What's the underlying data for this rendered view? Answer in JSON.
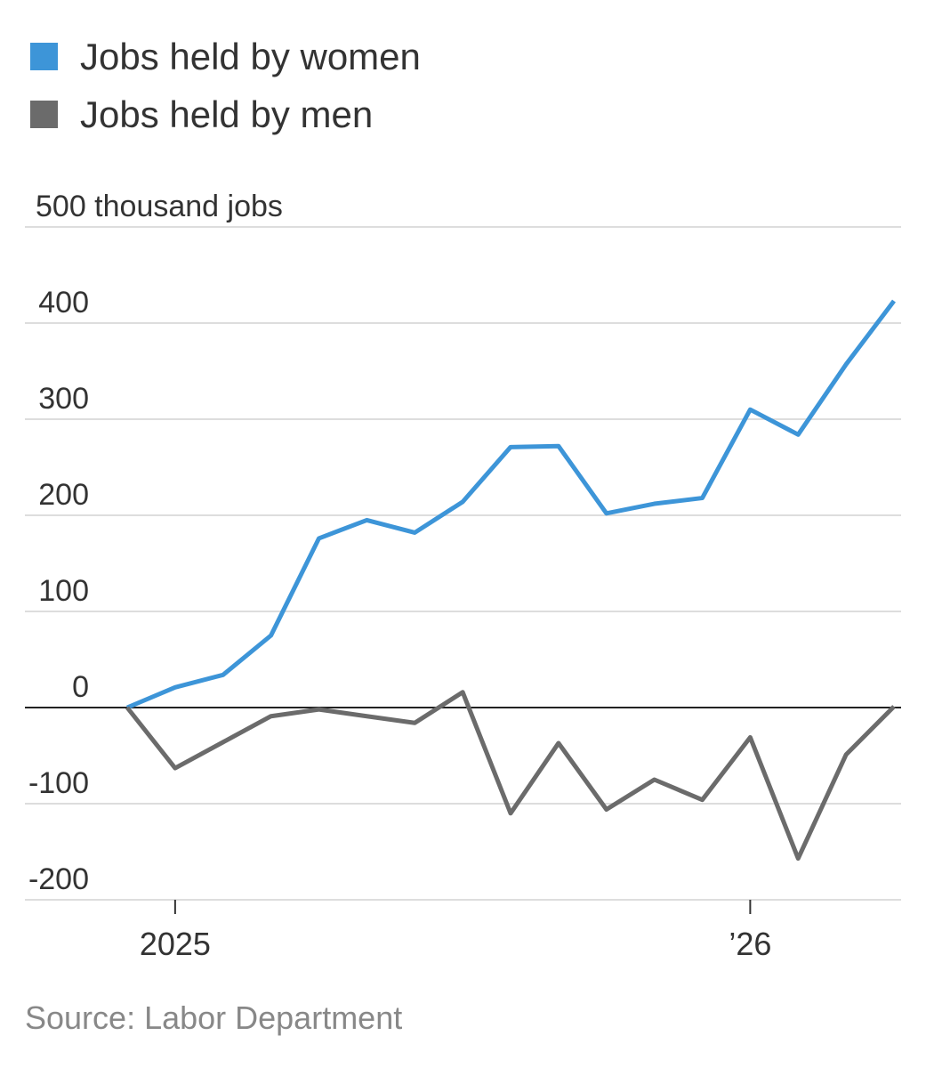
{
  "chart_data": {
    "type": "line",
    "categories": [
      null,
      "2025",
      null,
      null,
      null,
      null,
      null,
      null,
      null,
      null,
      null,
      null,
      null,
      "’26",
      null,
      null,
      null
    ],
    "series": [
      {
        "name": "Jobs held by women",
        "color": "#3d95d8",
        "values": [
          0,
          21,
          34,
          75,
          176,
          195,
          182,
          214,
          271,
          272,
          202,
          212,
          218,
          310,
          284,
          357,
          423
        ]
      },
      {
        "name": "Jobs held by men",
        "color": "#6b6b6b",
        "values": [
          0,
          -63,
          -36,
          -9,
          -2,
          -9,
          -16,
          16,
          -110,
          -37,
          -106,
          -75,
          -96,
          -31,
          -157,
          -49,
          1
        ]
      }
    ],
    "ylim": [
      -200,
      500
    ],
    "yticks": [
      -200,
      -100,
      0,
      100,
      200,
      300,
      400,
      {
        "value": 500,
        "label": "500 thousand jobs"
      }
    ],
    "grid": true,
    "source": "Source: Labor Department"
  }
}
